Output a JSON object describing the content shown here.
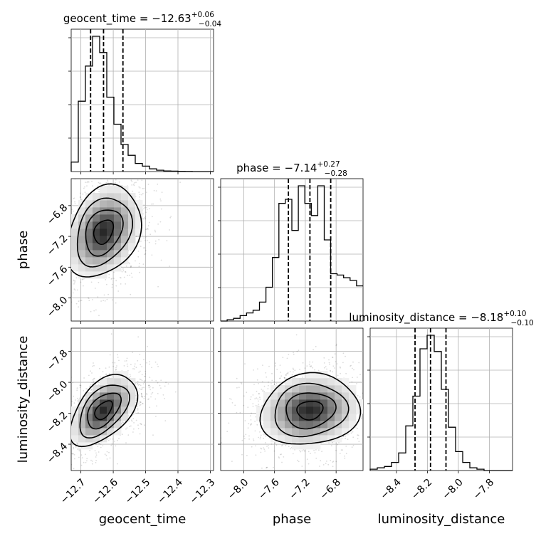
{
  "chart_data": {
    "type": "corner",
    "parameters": [
      "geocent_time",
      "phase",
      "luminosity_distance"
    ],
    "axis_labels": [
      "geocent_time",
      "phase",
      "luminosity_distance"
    ],
    "ranges": [
      [
        -12.73,
        -12.29
      ],
      [
        -8.3,
        -6.45
      ],
      [
        -8.57,
        -7.65
      ]
    ],
    "ticks": [
      [
        "-12.7",
        "-12.6",
        "-12.5",
        "-12.4",
        "-12.3"
      ],
      [
        "-8.0",
        "-7.6",
        "-7.2",
        "-6.8"
      ],
      [
        "-8.4",
        "-8.2",
        "-8.0",
        "-7.8"
      ]
    ],
    "tick_values": [
      [
        -12.7,
        -12.6,
        -12.5,
        -12.4,
        -12.3
      ],
      [
        -8.0,
        -7.6,
        -7.2,
        -6.8
      ],
      [
        -8.4,
        -8.2,
        -8.0,
        -7.8
      ]
    ],
    "grid": true,
    "titles": [
      {
        "param": "geocent_time",
        "median": "−12.63",
        "plus": "+0.06",
        "minus": "−0.04"
      },
      {
        "param": "phase",
        "median": "−7.14",
        "plus": "+0.27",
        "minus": "−0.28"
      },
      {
        "param": "luminosity_distance",
        "median": "−8.18",
        "plus": "+0.10",
        "minus": "−0.10"
      }
    ],
    "quantiles": [
      [
        -12.67,
        -12.63,
        -12.57
      ],
      [
        -7.42,
        -7.14,
        -6.87
      ],
      [
        -8.28,
        -8.18,
        -8.08
      ]
    ],
    "marginals": [
      {
        "bin_edges_range": [
          -12.73,
          -12.29
        ],
        "counts": [
          0.07,
          0.52,
          0.78,
          1.0,
          0.88,
          0.55,
          0.35,
          0.2,
          0.12,
          0.06,
          0.04,
          0.02,
          0.01,
          0.005,
          0.003,
          0.002,
          0.001,
          0.0,
          0.0,
          0.0
        ]
      },
      {
        "bin_edges_range": [
          -8.3,
          -6.45
        ],
        "counts": [
          0.0,
          0.01,
          0.02,
          0.04,
          0.06,
          0.08,
          0.14,
          0.25,
          0.47,
          0.87,
          0.9,
          0.67,
          1.0,
          0.87,
          0.78,
          1.0,
          0.6,
          0.35,
          0.34,
          0.32,
          0.3,
          0.26
        ]
      },
      {
        "bin_edges_range": [
          -8.57,
          -7.65
        ],
        "counts": [
          0.01,
          0.02,
          0.03,
          0.06,
          0.13,
          0.33,
          0.55,
          0.9,
          1.0,
          0.88,
          0.6,
          0.32,
          0.14,
          0.06,
          0.02,
          0.01,
          0.0,
          0.0,
          0.0,
          0.0
        ]
      }
    ],
    "joint_2d": [
      {
        "x": "geocent_time",
        "y": "phase",
        "mean": [
          -12.63,
          -7.14
        ],
        "sd": [
          0.05,
          0.26
        ],
        "rho": 0.28
      },
      {
        "x": "geocent_time",
        "y": "luminosity_distance",
        "mean": [
          -12.63,
          -8.18
        ],
        "sd": [
          0.045,
          0.1
        ],
        "rho": 0.5
      },
      {
        "x": "phase",
        "y": "luminosity_distance",
        "mean": [
          -7.14,
          -8.18
        ],
        "sd": [
          0.28,
          0.1
        ],
        "rho": 0.1
      }
    ]
  }
}
